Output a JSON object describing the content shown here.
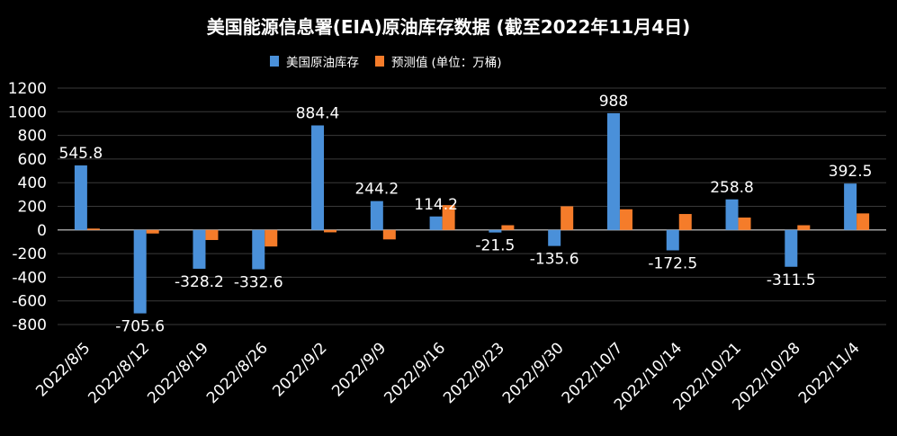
{
  "title": "美国能源信息署(EIA)原油库存数据 (截至2022年11月4日)",
  "legend": {
    "unit_note": "(单位：万桶)"
  },
  "colors": {
    "actual": "#4A90D9",
    "forecast": "#F57C2A",
    "background": "#000000",
    "grid": "#3a3a3a",
    "zero_line": "#cfcfcf"
  },
  "chart_data": {
    "type": "bar",
    "title": "美国能源信息署(EIA)原油库存数据 (截至2022年11月4日)",
    "categories": [
      "2022/8/5",
      "2022/8/12",
      "2022/8/19",
      "2022/8/26",
      "2022/9/2",
      "2022/9/9",
      "2022/9/16",
      "2022/9/23",
      "2022/9/30",
      "2022/10/7",
      "2022/10/14",
      "2022/10/21",
      "2022/10/28",
      "2022/11/4"
    ],
    "series": [
      {
        "name": "美国原油库存",
        "color": "#4A90D9",
        "values": [
          545.8,
          -705.6,
          -328.2,
          -332.6,
          884.4,
          244.2,
          114.2,
          -21.5,
          -135.6,
          988,
          -172.5,
          258.8,
          -311.5,
          392.5
        ],
        "labels": [
          "545.8",
          "-705.6",
          "-328.2",
          "-332.6",
          "884.4",
          "244.2",
          "114.2",
          "-21.5",
          "-135.6",
          "988",
          "-172.5",
          "258.8",
          "-311.5",
          "392.5"
        ]
      },
      {
        "name": "预测值",
        "color": "#F57C2A",
        "values": [
          12,
          -30,
          -85,
          -140,
          -20,
          -80,
          210,
          40,
          200,
          175,
          135,
          105,
          40,
          140
        ]
      }
    ],
    "ylim": [
      -800,
      1200
    ],
    "yticks": [
      "-800",
      "-600",
      "-400",
      "-200",
      "0",
      "200",
      "400",
      "600",
      "800",
      "1000",
      "1200"
    ],
    "grid": true,
    "legend_position": "top-center"
  }
}
